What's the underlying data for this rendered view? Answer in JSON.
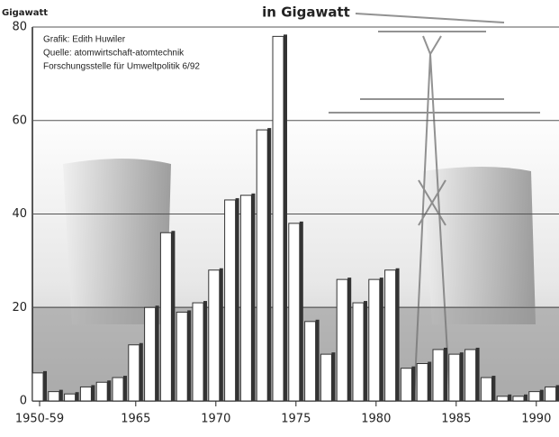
{
  "chart_data": {
    "type": "bar",
    "title": "in Gigawatt",
    "y_label": "Gigawatt",
    "annotations": [
      "Grafik: Edith Huwiler",
      "Quelle: atomwirtschaft-atomtechnik",
      "Forschungsstelle für Umweltpolitik 6/92"
    ],
    "categories": [
      "1950-59",
      null,
      null,
      null,
      null,
      null,
      "1965",
      null,
      null,
      null,
      null,
      "1970",
      null,
      null,
      null,
      null,
      "1975",
      null,
      null,
      null,
      null,
      "1980",
      null,
      null,
      null,
      null,
      "1985",
      null,
      null,
      null,
      null,
      "1990",
      null
    ],
    "values": [
      6,
      2,
      1.5,
      3,
      4,
      5,
      12,
      20,
      36,
      19,
      21,
      28,
      43,
      44,
      58,
      78,
      38,
      17,
      10,
      26,
      21,
      26,
      28,
      7,
      8,
      11,
      10,
      11,
      5,
      1,
      1,
      2,
      3
    ],
    "color": "#ffffff",
    "edge_color": "#333333",
    "ylim": [
      0,
      80
    ],
    "yticks": [
      0,
      20,
      40,
      60,
      80
    ],
    "grid": true
  }
}
